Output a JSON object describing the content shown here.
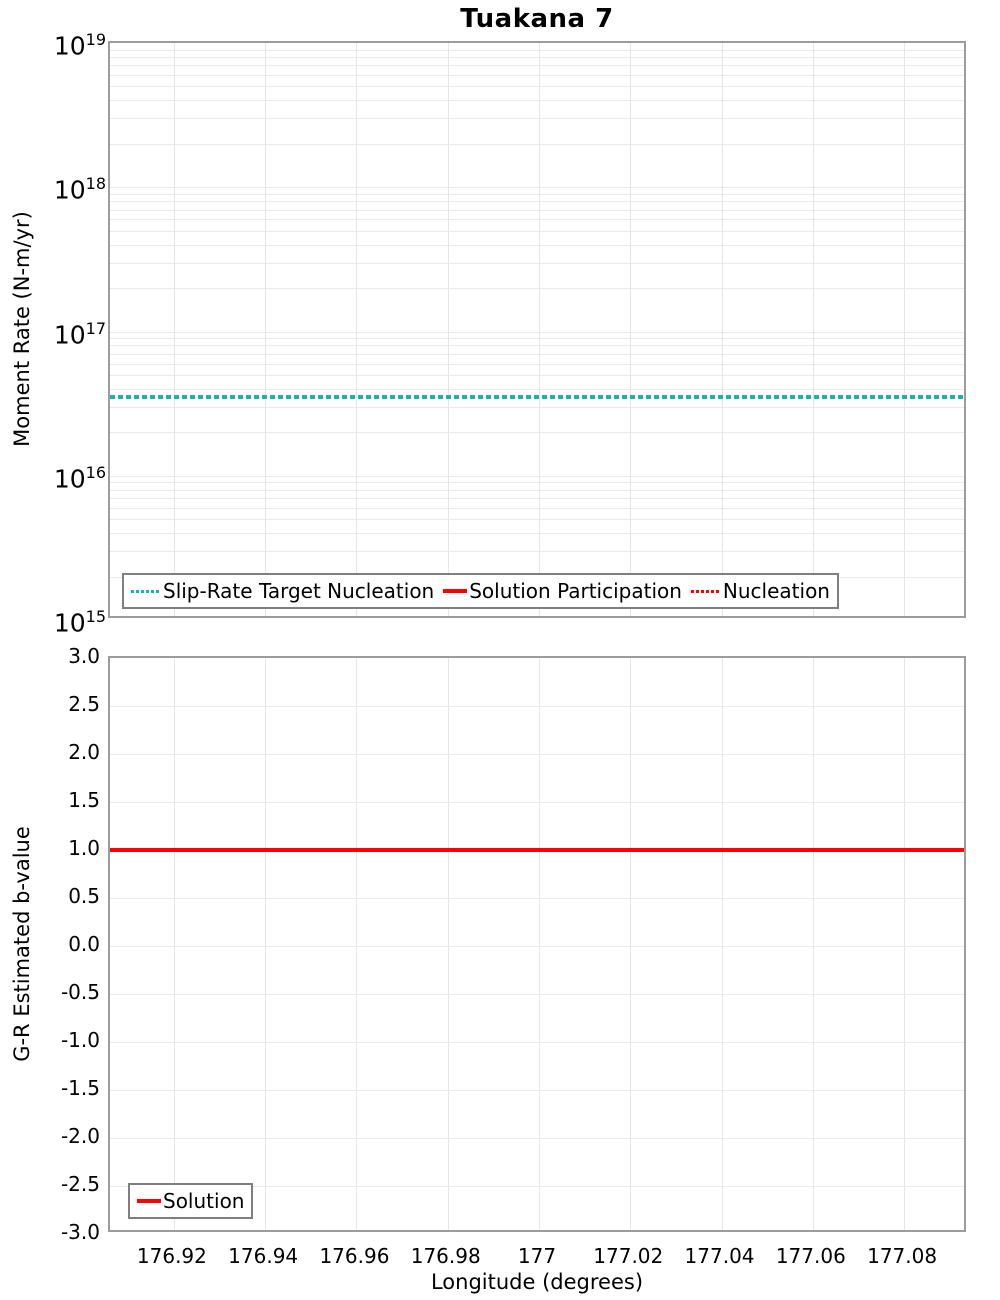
{
  "title": "Tuakana 7",
  "colors": {
    "teal": "#17b3ac",
    "red": "#ff0000",
    "grid": "#e9e9e9",
    "axis_border": "#9c9c9c",
    "legend_border": "#7f7f7f",
    "text": "#000000"
  },
  "chart_data": [
    {
      "type": "line",
      "title": "Tuakana 7",
      "ylabel": "Moment Rate (N-m/yr)",
      "yscale": "log",
      "ylim": [
        1000000000000000.0,
        1e+19
      ],
      "ytick_exponents": [
        19,
        18,
        17,
        16,
        15
      ],
      "xlim": [
        176.906,
        177.094
      ],
      "grid": true,
      "legend_position": "bottom-left",
      "series": [
        {
          "name": "Slip-Rate Target Nucleation",
          "color": "#17b3ac",
          "line_style": "dotted",
          "constant_y": 3.5e+16,
          "visible": true
        },
        {
          "name": "Solution Participation",
          "color": "#ff0000",
          "line_style": "solid",
          "constant_y": null,
          "visible": false
        },
        {
          "name": "Nucleation",
          "color": "#ff0000",
          "line_style": "dotted",
          "constant_y": null,
          "visible": false
        }
      ]
    },
    {
      "type": "line",
      "ylabel": "G-R Estimated b-value",
      "xlabel": "Longitude (degrees)",
      "ylim": [
        -3.0,
        3.0
      ],
      "yticks": [
        3.0,
        2.5,
        2.0,
        1.5,
        1.0,
        0.5,
        0.0,
        -0.5,
        -1.0,
        -1.5,
        -2.0,
        -2.5,
        -3.0
      ],
      "ytick_labels": [
        "3.0",
        "2.5",
        "2.0",
        "1.5",
        "1.0",
        "0.5",
        "0.0",
        "-0.5",
        "-1.0",
        "-1.5",
        "-2.0",
        "-2.5",
        "-3.0"
      ],
      "xlim": [
        176.906,
        177.094
      ],
      "xticks": [
        176.92,
        176.94,
        176.96,
        176.98,
        177,
        177.02,
        177.04,
        177.06,
        177.08
      ],
      "xtick_labels": [
        "176.92",
        "176.94",
        "176.96",
        "176.98",
        "177",
        "177.02",
        "177.04",
        "177.06",
        "177.08"
      ],
      "grid": true,
      "legend_position": "bottom-left",
      "series": [
        {
          "name": "Solution",
          "color": "#ff0000",
          "line_style": "solid",
          "constant_y": 1.0,
          "visible": true
        }
      ]
    }
  ]
}
